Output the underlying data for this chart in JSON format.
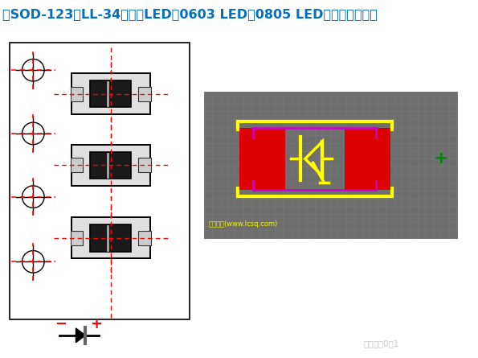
{
  "title": "例SOD-123、LL-34、贴片LED（0603 LED、0805 LED）等等的二极管",
  "title_color": "#0070C0",
  "title_fontsize": 11.5,
  "bg_color": "#ffffff",
  "fig_width": 5.95,
  "fig_height": 4.45,
  "watermark": "嵌入式从0到1",
  "lcsc_text": "立创论坛(www.lcsq.com)",
  "right_panel_bg": "#6e6e6e",
  "grid_color": "#7a7a7a",
  "yellow": "#ffff00",
  "magenta": "#cc00cc",
  "red_pad": "#dd0000",
  "green": "#008800"
}
